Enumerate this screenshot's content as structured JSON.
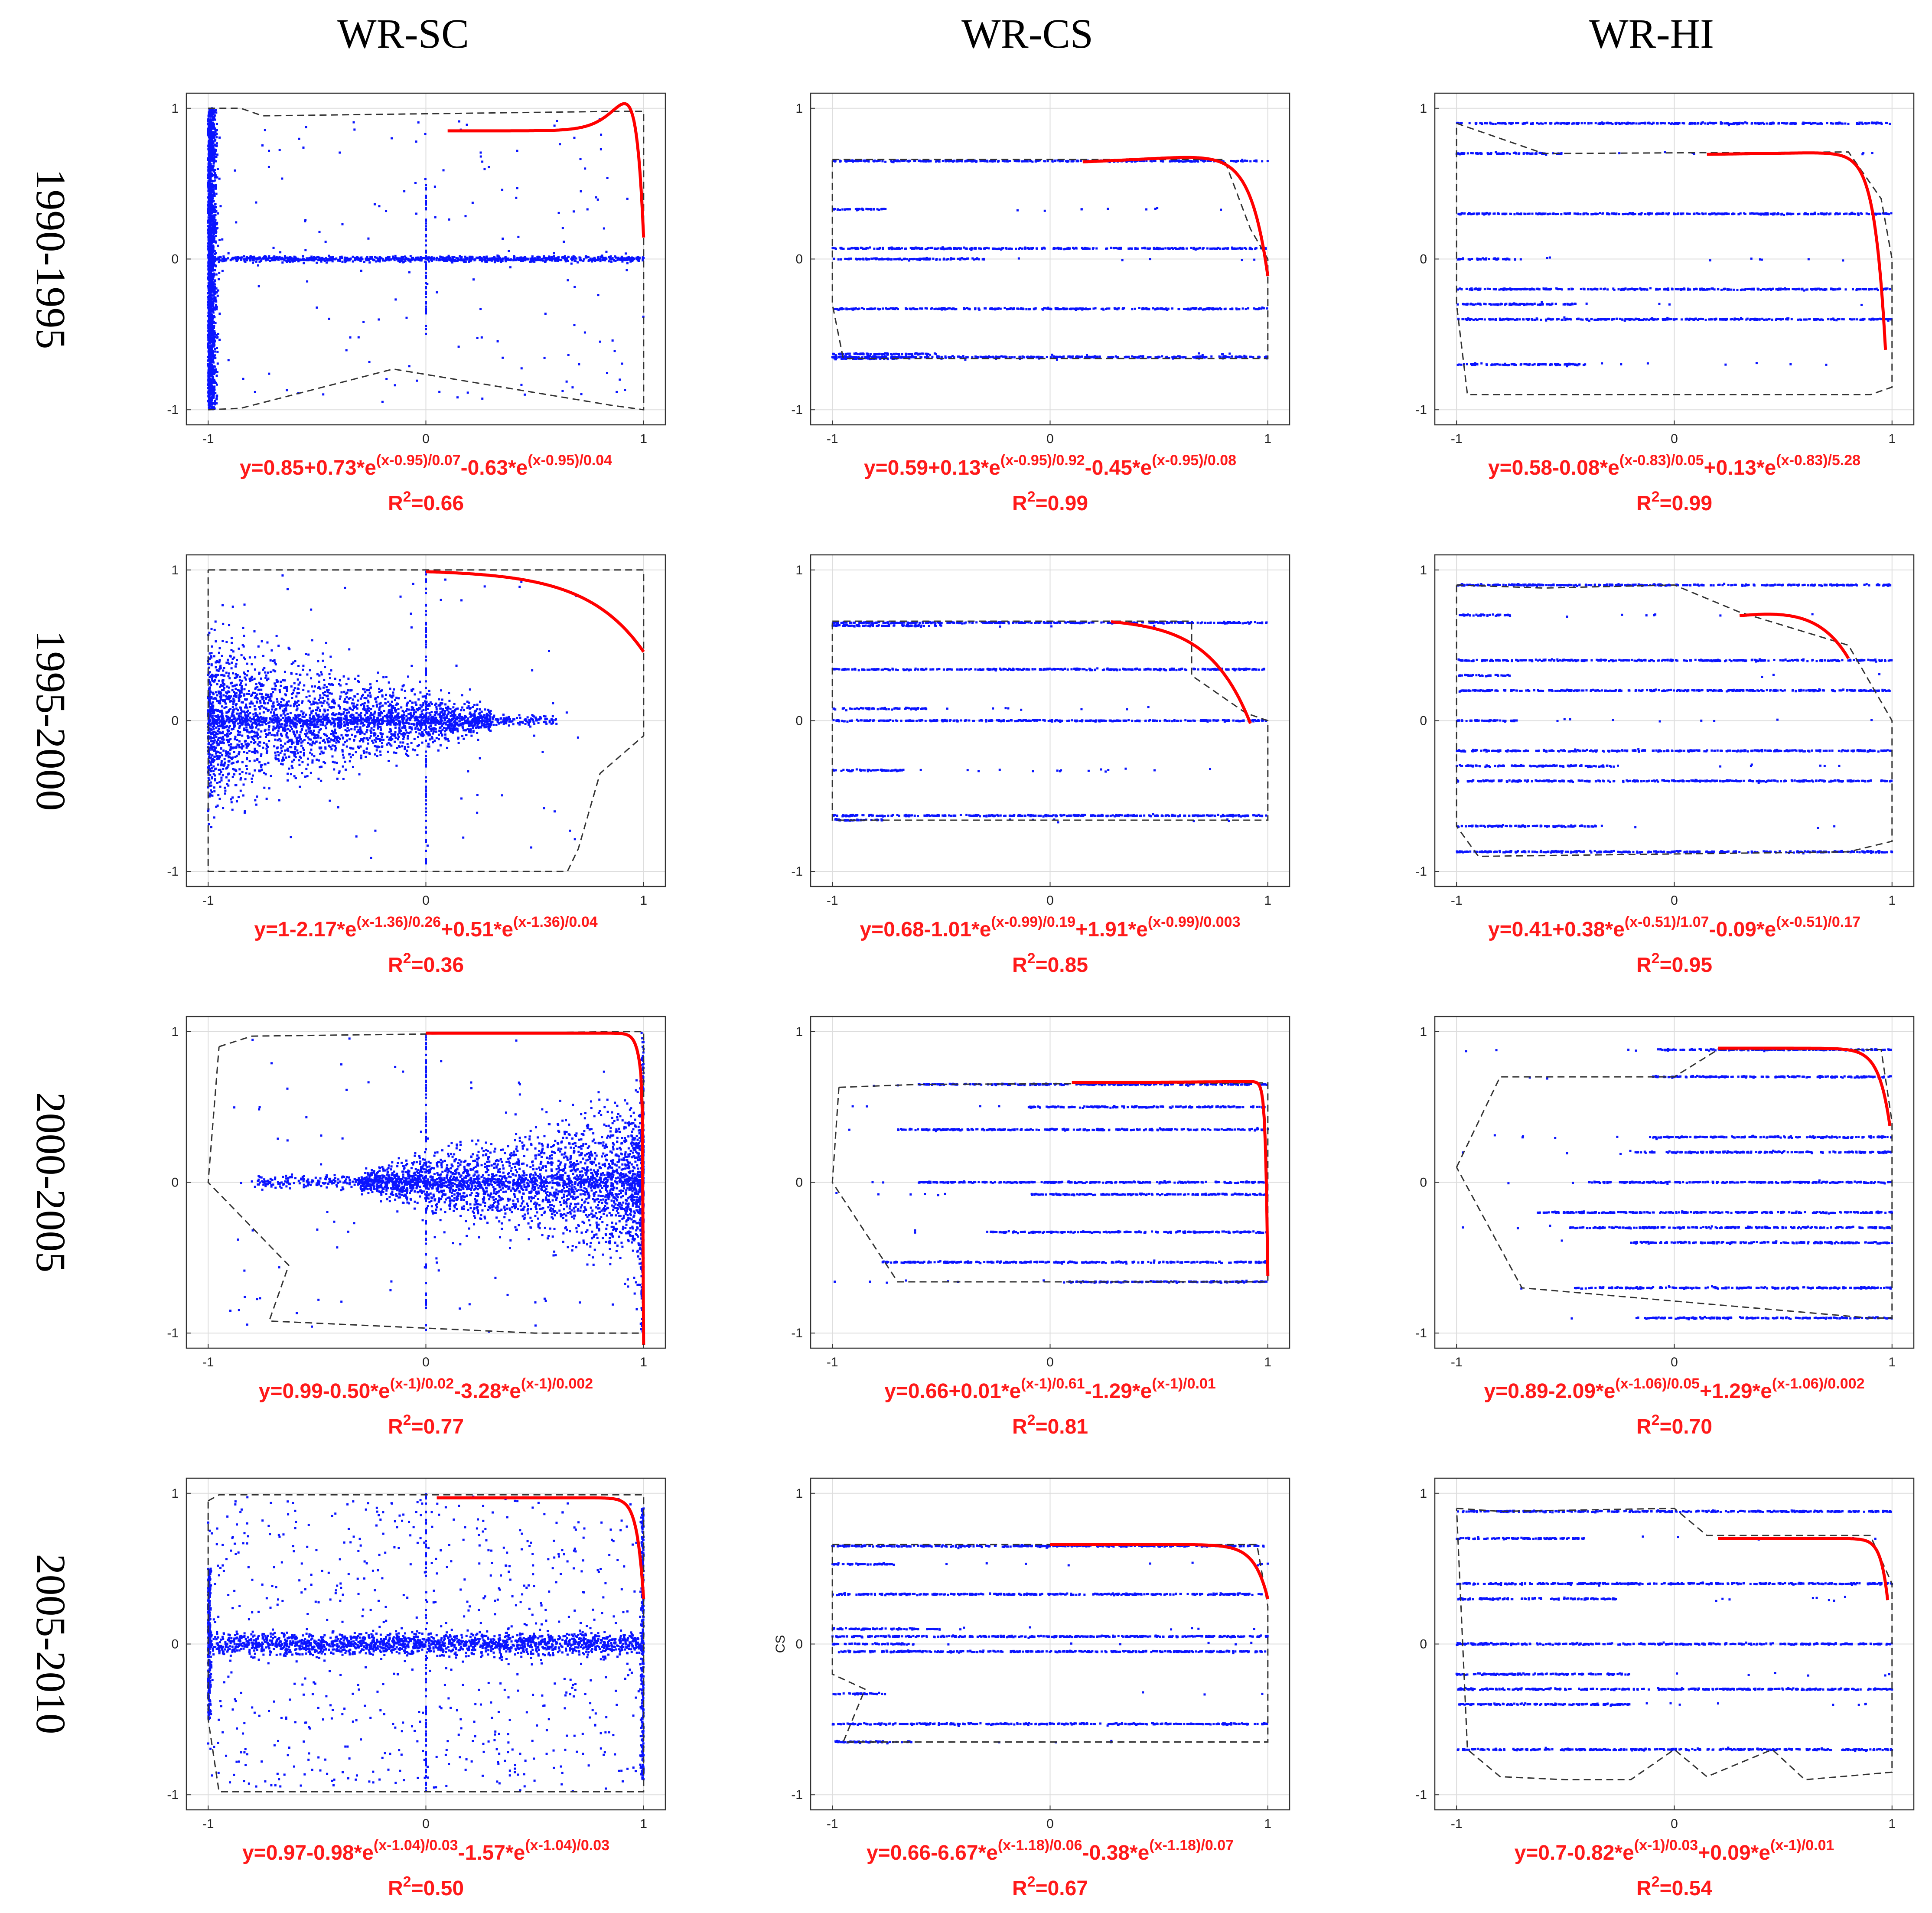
{
  "column_titles": [
    "WR-SC",
    "WR-CS",
    "WR-HI"
  ],
  "row_titles": [
    "1990-1995",
    "1995-2000",
    "2000-2005",
    "2005-2010"
  ],
  "colors": {
    "points": "#0a14ff",
    "fit": "#ff0000",
    "hull": "#333333",
    "grid": "#dddddd",
    "equation": "#ff1a1a"
  },
  "chart_data": [
    {
      "type": "scatter",
      "id": "SC-1990",
      "xlim": [
        -1.1,
        1.1
      ],
      "ylim": [
        -1.1,
        1.1
      ],
      "xticks": [
        "-1",
        "0",
        "1"
      ],
      "yticks": [
        "1",
        "0",
        "-1"
      ],
      "ylabel": "",
      "pattern": "sc-left",
      "fit": {
        "c": 0.85,
        "a1": 0.73,
        "b1": -0.95,
        "s1": 0.07,
        "a2": -0.63,
        "b2": -0.95,
        "s2": 0.04,
        "xrange": [
          0.1,
          1.0
        ]
      },
      "equation": {
        "base": "y=0.85+0.73*e",
        "exp1": "(x-0.95)/0.07",
        "mid": "-0.63*e",
        "exp2": "(x-0.95)/0.04",
        "r2_prefix": "R",
        "r2_sup": "2",
        "r2_value": "=0.66"
      },
      "hull": [
        [
          -1,
          1
        ],
        [
          -0.85,
          1
        ],
        [
          -0.75,
          0.95
        ],
        [
          0.9,
          0.98
        ],
        [
          1,
          0.98
        ],
        [
          1,
          -1
        ],
        [
          0.85,
          -0.97
        ],
        [
          -0.15,
          -0.73
        ],
        [
          -0.85,
          -0.99
        ],
        [
          -1,
          -1
        ]
      ]
    },
    {
      "type": "scatter",
      "id": "CS-1990",
      "xlim": [
        -1.1,
        1.1
      ],
      "ylim": [
        -1.1,
        1.1
      ],
      "xticks": [
        "-1",
        "0",
        "1"
      ],
      "yticks": [
        "1",
        "0",
        "-1"
      ],
      "ylabel": "",
      "pattern": "bands",
      "bands": [
        0.65,
        0.33,
        0.07,
        0.0,
        -0.33,
        -0.63,
        -0.65,
        -0.66
      ],
      "fit": {
        "c": 0.59,
        "a1": 0.13,
        "b1": -0.95,
        "s1": 0.92,
        "a2": -0.45,
        "b2": -0.95,
        "s2": 0.08,
        "xrange": [
          0.15,
          1.0
        ]
      },
      "equation": {
        "base": "y=0.59+0.13*e",
        "exp1": "(x-0.95)/0.92",
        "mid": "-0.45*e",
        "exp2": "(x-0.95)/0.08",
        "r2_prefix": "R",
        "r2_sup": "2",
        "r2_value": "=0.99"
      },
      "hull": [
        [
          -1,
          0.66
        ],
        [
          0.8,
          0.66
        ],
        [
          0.92,
          0.2
        ],
        [
          1,
          0
        ],
        [
          1,
          -0.66
        ],
        [
          -0.95,
          -0.66
        ],
        [
          -1,
          -0.3
        ],
        [
          -1,
          0.66
        ]
      ]
    },
    {
      "type": "scatter",
      "id": "HI-1990",
      "xlim": [
        -1.1,
        1.1
      ],
      "ylim": [
        -1.1,
        1.1
      ],
      "xticks": [
        "-1",
        "0",
        "1"
      ],
      "yticks": [
        "1",
        "0",
        "-1"
      ],
      "ylabel": "",
      "pattern": "bands",
      "bands": [
        0.9,
        0.7,
        0.3,
        0.0,
        -0.2,
        -0.3,
        -0.4,
        -0.7
      ],
      "fit": {
        "c": 0.58,
        "a1": -0.08,
        "b1": -0.83,
        "s1": 0.05,
        "a2": 0.13,
        "b2": -0.83,
        "s2": 5.28,
        "xrange": [
          0.15,
          0.97
        ]
      },
      "equation": {
        "base": "y=0.58-0.08*e",
        "exp1": "(x-0.83)/0.05",
        "mid": "+0.13*e",
        "exp2": "(x-0.83)/5.28",
        "r2_prefix": "R",
        "r2_sup": "2",
        "r2_value": "=0.99"
      },
      "hull": [
        [
          -1,
          0.9
        ],
        [
          -0.6,
          0.7
        ],
        [
          0.8,
          0.71
        ],
        [
          0.95,
          0.4
        ],
        [
          1,
          0
        ],
        [
          1,
          -0.85
        ],
        [
          0.9,
          -0.9
        ],
        [
          -0.95,
          -0.9
        ],
        [
          -1,
          -0.3
        ],
        [
          -1,
          0.9
        ]
      ]
    },
    {
      "type": "scatter",
      "id": "SC-1995",
      "xlim": [
        -1.1,
        1.1
      ],
      "ylim": [
        -1.1,
        1.1
      ],
      "xticks": [
        "-1",
        "0",
        "1"
      ],
      "yticks": [
        "1",
        "0",
        "-1"
      ],
      "ylabel": "",
      "pattern": "sc-fan-left",
      "fit": {
        "c": 1.0,
        "a1": -2.17,
        "b1": -1.36,
        "s1": 0.26,
        "a2": 0.51,
        "b2": -1.36,
        "s2": 0.04,
        "xrange": [
          0.0,
          1.0
        ]
      },
      "equation": {
        "base": "y=1-2.17*e",
        "exp1": "(x-1.36)/0.26",
        "mid": "+0.51*e",
        "exp2": "(x-1.36)/0.04",
        "r2_prefix": "R",
        "r2_sup": "2",
        "r2_value": "=0.36"
      },
      "hull": [
        [
          -1,
          1
        ],
        [
          1,
          1
        ],
        [
          1,
          -0.1
        ],
        [
          0.8,
          -0.35
        ],
        [
          0.7,
          -0.85
        ],
        [
          0.65,
          -1
        ],
        [
          -1,
          -1
        ],
        [
          -1,
          1
        ]
      ]
    },
    {
      "type": "scatter",
      "id": "CS-1995",
      "xlim": [
        -1.1,
        1.1
      ],
      "ylim": [
        -1.1,
        1.1
      ],
      "xticks": [
        "-1",
        "0",
        "1"
      ],
      "yticks": [
        "1",
        "0",
        "-1"
      ],
      "ylabel": "",
      "pattern": "bands",
      "bands": [
        0.65,
        0.63,
        0.34,
        0.08,
        0.0,
        -0.33,
        -0.63,
        -0.66
      ],
      "fit": {
        "c": 0.68,
        "a1": -1.01,
        "b1": -0.99,
        "s1": 0.19,
        "a2": 1.91,
        "b2": -0.99,
        "s2": 0.003,
        "xrange": [
          0.28,
          0.92
        ]
      },
      "equation": {
        "base": "y=0.68-1.01*e",
        "exp1": "(x-0.99)/0.19",
        "mid": "+1.91*e",
        "exp2": "(x-0.99)/0.003",
        "r2_prefix": "R",
        "r2_sup": "2",
        "r2_value": "=0.85"
      },
      "hull": [
        [
          -1,
          0.66
        ],
        [
          0.65,
          0.66
        ],
        [
          0.65,
          0.3
        ],
        [
          0.9,
          0.05
        ],
        [
          1,
          0
        ],
        [
          1,
          -0.66
        ],
        [
          -1,
          -0.66
        ],
        [
          -1,
          0.66
        ]
      ]
    },
    {
      "type": "scatter",
      "id": "HI-1995",
      "xlim": [
        -1.1,
        1.1
      ],
      "ylim": [
        -1.1,
        1.1
      ],
      "xticks": [
        "-1",
        "0",
        "1"
      ],
      "yticks": [
        "1",
        "0",
        "-1"
      ],
      "ylabel": "",
      "pattern": "bands",
      "bands": [
        0.9,
        0.7,
        0.4,
        0.3,
        0.2,
        0.0,
        -0.2,
        -0.3,
        -0.4,
        -0.7,
        -0.87
      ],
      "fit": {
        "c": 0.41,
        "a1": 0.38,
        "b1": -0.51,
        "s1": 1.07,
        "a2": -0.09,
        "b2": -0.51,
        "s2": 0.17,
        "xrange": [
          0.3,
          0.8
        ]
      },
      "equation": {
        "base": "y=0.41+0.38*e",
        "exp1": "(x-0.51)/1.07",
        "mid": "-0.09*e",
        "exp2": "(x-0.51)/0.17",
        "r2_prefix": "R",
        "r2_sup": "2",
        "r2_value": "=0.95"
      },
      "hull": [
        [
          -1,
          0.9
        ],
        [
          -0.6,
          0.88
        ],
        [
          0,
          0.9
        ],
        [
          0.3,
          0.72
        ],
        [
          0.8,
          0.5
        ],
        [
          1,
          0
        ],
        [
          1,
          -0.8
        ],
        [
          0.8,
          -0.87
        ],
        [
          -0.9,
          -0.9
        ],
        [
          -1,
          -0.7
        ],
        [
          -1,
          0.9
        ]
      ]
    },
    {
      "type": "scatter",
      "id": "SC-2000",
      "xlim": [
        -1.1,
        1.1
      ],
      "ylim": [
        -1.1,
        1.1
      ],
      "xticks": [
        "-1",
        "0",
        "1"
      ],
      "yticks": [
        "1",
        "0",
        "-1"
      ],
      "ylabel": "",
      "pattern": "sc-right",
      "fit": {
        "c": 0.99,
        "a1": -0.5,
        "b1": 1.0,
        "s1": 0.02,
        "a2": -3.28,
        "b2": 1.0,
        "s2": 0.002,
        "xrange": [
          0.0,
          1.0
        ]
      },
      "equation": {
        "base": "y=0.99-0.50*e",
        "exp1": "(x-1)/0.02",
        "mid": "-3.28*e",
        "exp2": "(x-1)/0.002",
        "r2_prefix": "R",
        "r2_sup": "2",
        "r2_value": "=0.77"
      },
      "hull": [
        [
          -0.95,
          0.9
        ],
        [
          -0.8,
          0.97
        ],
        [
          0.9,
          1
        ],
        [
          1,
          1
        ],
        [
          1,
          -1
        ],
        [
          0.5,
          -1
        ],
        [
          -0.72,
          -0.92
        ],
        [
          -0.63,
          -0.55
        ],
        [
          -1,
          0
        ],
        [
          -0.95,
          0.9
        ]
      ]
    },
    {
      "type": "scatter",
      "id": "CS-2000",
      "xlim": [
        -1.1,
        1.1
      ],
      "ylim": [
        -1.1,
        1.1
      ],
      "xticks": [
        "-1",
        "0",
        "1"
      ],
      "yticks": [
        "1",
        "0",
        "-1"
      ],
      "ylabel": "",
      "pattern": "bands-right",
      "bands": [
        0.65,
        0.5,
        0.35,
        0.0,
        -0.08,
        -0.33,
        -0.53,
        -0.66
      ],
      "fit": {
        "c": 0.66,
        "a1": 0.01,
        "b1": 1.0,
        "s1": 0.61,
        "a2": -1.29,
        "b2": 1.0,
        "s2": 0.01,
        "xrange": [
          0.1,
          1.0
        ]
      },
      "equation": {
        "base": "y=0.66+0.01*e",
        "exp1": "(x-1)/0.61",
        "mid": "-1.29*e",
        "exp2": "(x-1)/0.01",
        "r2_prefix": "R",
        "r2_sup": "2",
        "r2_value": "=0.81"
      },
      "hull": [
        [
          -0.97,
          0.63
        ],
        [
          -0.6,
          0.65
        ],
        [
          1,
          0.66
        ],
        [
          1,
          -0.66
        ],
        [
          -0.7,
          -0.66
        ],
        [
          -1,
          0
        ],
        [
          -0.97,
          0.63
        ]
      ]
    },
    {
      "type": "scatter",
      "id": "HI-2000",
      "xlim": [
        -1.1,
        1.1
      ],
      "ylim": [
        -1.1,
        1.1
      ],
      "xticks": [
        "-1",
        "0",
        "1"
      ],
      "yticks": [
        "1",
        "0",
        "-1"
      ],
      "ylabel": "",
      "pattern": "bands-right",
      "bands": [
        0.88,
        0.7,
        0.3,
        0.2,
        0.0,
        -0.2,
        -0.3,
        -0.4,
        -0.7,
        -0.9
      ],
      "fit": {
        "c": 0.89,
        "a1": -2.09,
        "b1": 1.06,
        "s1": 0.05,
        "a2": 1.29,
        "b2": 1.06,
        "s2": 0.002,
        "xrange": [
          0.2,
          0.99
        ]
      },
      "equation": {
        "base": "y=0.89-2.09*e",
        "exp1": "(x-1.06)/0.05",
        "mid": "+1.29*e",
        "exp2": "(x-1.06)/0.002",
        "r2_prefix": "R",
        "r2_sup": "2",
        "r2_value": "=0.70"
      },
      "hull": [
        [
          -1,
          0.1
        ],
        [
          -0.8,
          0.7
        ],
        [
          0,
          0.7
        ],
        [
          0.2,
          0.88
        ],
        [
          0.95,
          0.88
        ],
        [
          1,
          0.4
        ],
        [
          1,
          -0.9
        ],
        [
          0.9,
          -0.9
        ],
        [
          -0.7,
          -0.7
        ],
        [
          -1,
          0.1
        ]
      ]
    },
    {
      "type": "scatter",
      "id": "SC-2005",
      "xlim": [
        -1.1,
        1.1
      ],
      "ylim": [
        -1.1,
        1.1
      ],
      "xticks": [
        "-1",
        "0",
        "1"
      ],
      "yticks": [
        "1",
        "0",
        "-1"
      ],
      "ylabel": "",
      "pattern": "sc-uniform",
      "fit": {
        "c": 0.97,
        "a1": -0.98,
        "b1": 1.04,
        "s1": 0.03,
        "a2": -1.57,
        "b2": 1.04,
        "s2": 0.03,
        "xrange": [
          0.05,
          1.0
        ]
      },
      "equation": {
        "base": "y=0.97-0.98*e",
        "exp1": "(x-1.04)/0.03",
        "mid": "-1.57*e",
        "exp2": "(x-1.04)/0.03",
        "r2_prefix": "R",
        "r2_sup": "2",
        "r2_value": "=0.50"
      },
      "hull": [
        [
          -1,
          0.95
        ],
        [
          -0.95,
          0.99
        ],
        [
          1,
          0.99
        ],
        [
          1,
          -0.98
        ],
        [
          -0.95,
          -0.98
        ],
        [
          -1,
          -0.5
        ],
        [
          -1,
          0.95
        ]
      ]
    },
    {
      "type": "scatter",
      "id": "CS-2005",
      "xlim": [
        -1.1,
        1.1
      ],
      "ylim": [
        -1.1,
        1.1
      ],
      "xticks": [
        "-1",
        "0",
        "1"
      ],
      "yticks": [
        "1",
        "0",
        "-1"
      ],
      "ylabel": "CS",
      "pattern": "bands",
      "bands": [
        0.65,
        0.53,
        0.33,
        0.1,
        0.05,
        0.0,
        -0.05,
        -0.33,
        -0.53,
        -0.65
      ],
      "fit": {
        "c": 0.66,
        "a1": -6.67,
        "b1": 1.18,
        "s1": 0.06,
        "a2": -0.38,
        "b2": 1.18,
        "s2": 0.07,
        "xrange": [
          0.0,
          1.0
        ]
      },
      "equation": {
        "base": "y=0.66-6.67*e",
        "exp1": "(x-1.18)/0.06",
        "mid": "-0.38*e",
        "exp2": "(x-1.18)/0.07",
        "r2_prefix": "R",
        "r2_sup": "2",
        "r2_value": "=0.67"
      },
      "hull": [
        [
          -1,
          0.66
        ],
        [
          0.95,
          0.66
        ],
        [
          1,
          0.25
        ],
        [
          1,
          -0.65
        ],
        [
          -0.95,
          -0.65
        ],
        [
          -0.85,
          -0.3
        ],
        [
          -1,
          -0.2
        ],
        [
          -1,
          0.66
        ]
      ]
    },
    {
      "type": "scatter",
      "id": "HI-2005",
      "xlim": [
        -1.1,
        1.1
      ],
      "ylim": [
        -1.1,
        1.1
      ],
      "xticks": [
        "-1",
        "0",
        "1"
      ],
      "yticks": [
        "1",
        "0",
        "-1"
      ],
      "ylabel": "",
      "pattern": "bands",
      "bands": [
        0.88,
        0.7,
        0.4,
        0.3,
        0.0,
        -0.2,
        -0.3,
        -0.4,
        -0.7
      ],
      "fit": {
        "c": 0.7,
        "a1": -0.82,
        "b1": 1.0,
        "s1": 0.03,
        "a2": 0.09,
        "b2": 1.0,
        "s2": 0.01,
        "xrange": [
          0.2,
          0.98
        ]
      },
      "equation": {
        "base": "y=0.7-0.82*e",
        "exp1": "(x-1)/0.03",
        "mid": "+0.09*e",
        "exp2": "(x-1)/0.01",
        "r2_prefix": "R",
        "r2_sup": "2",
        "r2_value": "=0.54"
      },
      "hull": [
        [
          -1,
          0.9
        ],
        [
          -0.8,
          0.88
        ],
        [
          0,
          0.9
        ],
        [
          0.15,
          0.72
        ],
        [
          0.9,
          0.72
        ],
        [
          1,
          0.4
        ],
        [
          1,
          -0.85
        ],
        [
          0.6,
          -0.9
        ],
        [
          0.45,
          -0.7
        ],
        [
          0.15,
          -0.88
        ],
        [
          0,
          -0.7
        ],
        [
          -0.2,
          -0.9
        ],
        [
          -0.5,
          -0.9
        ],
        [
          -0.8,
          -0.88
        ],
        [
          -0.95,
          -0.7
        ],
        [
          -1,
          0.9
        ]
      ]
    }
  ]
}
